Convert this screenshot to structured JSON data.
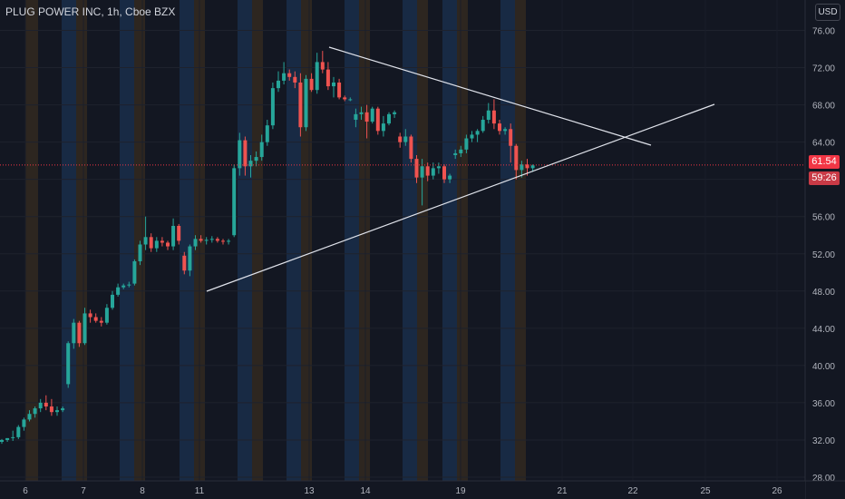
{
  "header": {
    "symbol_line": "PLUG POWER INC, 1h, Cboe BZX"
  },
  "scale_button": "USD",
  "price_tag": "61.54",
  "countdown_tag": "59:26",
  "colors": {
    "background": "#131722",
    "up": "#26a69a",
    "down": "#ef5350",
    "price_line": "#f23645",
    "session_blue": "#182a44",
    "session_orange": "#2d2620",
    "trendline": "#e0e3eb"
  },
  "chart_data": {
    "type": "candlestick",
    "title": "PLUG POWER INC, 1h, Cboe BZX",
    "ylim": [
      28,
      77
    ],
    "y_ticks": [
      "76.00",
      "72.00",
      "68.00",
      "64.00",
      "60.00",
      "56.00",
      "52.00",
      "48.00",
      "44.00",
      "40.00",
      "36.00",
      "32.00",
      "28.00"
    ],
    "x_ticks": [
      "6",
      "7",
      "8",
      "11",
      "13",
      "14",
      "19",
      "21",
      "22",
      "25",
      "26"
    ],
    "last_price": 61.54,
    "grid": true,
    "candles": [
      [
        31.8,
        32.1,
        31.6,
        32.0
      ],
      [
        32.0,
        32.2,
        31.8,
        32.2
      ],
      [
        32.2,
        33.0,
        31.9,
        32.3
      ],
      [
        32.3,
        33.6,
        32.1,
        33.4
      ],
      [
        33.4,
        34.4,
        33.0,
        34.2
      ],
      [
        34.2,
        35.2,
        34.0,
        34.8
      ],
      [
        34.8,
        35.6,
        34.4,
        35.4
      ],
      [
        35.4,
        36.4,
        35.0,
        36.0
      ],
      [
        36.0,
        36.8,
        35.2,
        35.6
      ],
      [
        35.6,
        36.4,
        34.6,
        35.0
      ],
      [
        35.0,
        35.6,
        34.6,
        35.2
      ],
      [
        35.2,
        35.6,
        35.0,
        35.4
      ],
      [
        38.0,
        42.6,
        37.6,
        42.4
      ],
      [
        42.4,
        45.0,
        41.8,
        44.6
      ],
      [
        44.6,
        44.8,
        42.0,
        42.4
      ],
      [
        42.4,
        46.2,
        42.2,
        45.6
      ],
      [
        45.6,
        46.0,
        44.6,
        45.2
      ],
      [
        45.2,
        45.6,
        44.6,
        44.8
      ],
      [
        44.8,
        45.2,
        44.2,
        44.6
      ],
      [
        44.6,
        46.6,
        44.4,
        46.2
      ],
      [
        46.2,
        48.0,
        46.0,
        47.6
      ],
      [
        47.6,
        48.8,
        47.4,
        48.4
      ],
      [
        48.4,
        48.8,
        48.2,
        48.6
      ],
      [
        48.6,
        49.0,
        48.4,
        48.7
      ],
      [
        48.8,
        51.4,
        48.6,
        51.2
      ],
      [
        51.2,
        53.4,
        50.8,
        53.0
      ],
      [
        53.0,
        56.0,
        52.4,
        53.8
      ],
      [
        53.8,
        54.2,
        52.2,
        52.6
      ],
      [
        52.6,
        53.8,
        52.2,
        53.4
      ],
      [
        53.4,
        53.8,
        52.8,
        53.2
      ],
      [
        53.2,
        53.4,
        52.4,
        52.8
      ],
      [
        52.8,
        55.8,
        52.4,
        55.0
      ],
      [
        55.0,
        55.2,
        53.0,
        53.4
      ],
      [
        51.8,
        52.2,
        49.8,
        50.2
      ],
      [
        50.2,
        53.0,
        49.6,
        52.8
      ],
      [
        52.8,
        54.0,
        52.4,
        53.6
      ],
      [
        53.6,
        54.0,
        53.2,
        53.4
      ],
      [
        53.4,
        53.8,
        53.0,
        53.5
      ],
      [
        53.5,
        53.9,
        53.2,
        53.6
      ],
      [
        53.6,
        53.8,
        53.2,
        53.4
      ],
      [
        53.4,
        53.6,
        53.0,
        53.3
      ],
      [
        53.3,
        53.6,
        53.0,
        53.4
      ],
      [
        54.0,
        61.6,
        53.8,
        61.2
      ],
      [
        61.2,
        65.0,
        60.4,
        64.2
      ],
      [
        64.2,
        64.6,
        60.4,
        61.4
      ],
      [
        61.4,
        62.6,
        60.2,
        62.0
      ],
      [
        62.0,
        63.0,
        61.4,
        62.4
      ],
      [
        62.4,
        64.8,
        62.0,
        64.0
      ],
      [
        64.0,
        66.4,
        63.6,
        65.8
      ],
      [
        65.8,
        70.4,
        65.4,
        69.8
      ],
      [
        69.8,
        71.6,
        69.4,
        70.6
      ],
      [
        70.6,
        72.6,
        70.2,
        71.4
      ],
      [
        71.4,
        71.8,
        70.6,
        71.0
      ],
      [
        71.0,
        71.6,
        69.8,
        70.4
      ],
      [
        70.4,
        71.4,
        64.6,
        65.6
      ],
      [
        65.6,
        71.2,
        65.2,
        70.8
      ],
      [
        70.8,
        71.4,
        69.4,
        69.6
      ],
      [
        69.6,
        73.6,
        69.2,
        72.6
      ],
      [
        72.6,
        73.8,
        71.4,
        71.8
      ],
      [
        71.8,
        72.6,
        69.6,
        70.0
      ],
      [
        70.0,
        71.0,
        68.8,
        70.4
      ],
      [
        70.4,
        70.8,
        68.6,
        68.8
      ],
      [
        68.8,
        69.0,
        68.4,
        68.6
      ],
      [
        68.6,
        68.8,
        68.4,
        68.6
      ],
      [
        66.4,
        67.6,
        65.6,
        67.0
      ],
      [
        67.0,
        67.8,
        66.4,
        67.2
      ],
      [
        67.2,
        68.0,
        64.4,
        66.2
      ],
      [
        66.2,
        67.8,
        66.0,
        67.6
      ],
      [
        67.6,
        67.8,
        64.8,
        65.2
      ],
      [
        65.2,
        66.8,
        64.6,
        66.0
      ],
      [
        66.0,
        67.2,
        65.8,
        67.0
      ],
      [
        67.0,
        67.4,
        66.6,
        67.2
      ],
      [
        64.6,
        65.0,
        63.4,
        64.0
      ],
      [
        64.0,
        65.4,
        63.6,
        64.6
      ],
      [
        64.6,
        64.8,
        61.8,
        62.2
      ],
      [
        62.2,
        62.6,
        59.6,
        60.2
      ],
      [
        60.2,
        62.2,
        57.2,
        61.4
      ],
      [
        61.4,
        61.8,
        59.8,
        60.4
      ],
      [
        60.4,
        61.8,
        60.0,
        61.2
      ],
      [
        61.2,
        61.8,
        60.6,
        61.4
      ],
      [
        61.4,
        61.6,
        59.6,
        60.0
      ],
      [
        60.0,
        60.6,
        59.6,
        60.4
      ],
      [
        62.6,
        63.2,
        62.2,
        62.8
      ],
      [
        62.8,
        63.6,
        62.4,
        63.2
      ],
      [
        63.2,
        64.8,
        62.8,
        64.4
      ],
      [
        64.4,
        65.2,
        64.0,
        64.8
      ],
      [
        64.8,
        65.4,
        64.0,
        65.2
      ],
      [
        65.2,
        66.8,
        65.0,
        66.4
      ],
      [
        66.4,
        68.2,
        66.0,
        67.4
      ],
      [
        67.4,
        68.6,
        65.4,
        66.0
      ],
      [
        66.0,
        66.4,
        64.8,
        65.2
      ],
      [
        65.2,
        65.6,
        64.8,
        65.4
      ],
      [
        65.4,
        66.0,
        61.8,
        63.6
      ],
      [
        63.6,
        63.8,
        60.0,
        61.0
      ],
      [
        61.0,
        62.0,
        60.2,
        61.6
      ],
      [
        61.6,
        62.2,
        60.4,
        61.2
      ],
      [
        61.2,
        61.6,
        60.8,
        61.5
      ]
    ],
    "trendlines": [
      {
        "from": [
          363,
          52
        ],
        "to": [
          718,
          160
        ]
      },
      {
        "from": [
          228,
          321
        ],
        "to": [
          788,
          115
        ]
      }
    ],
    "sessions": [
      {
        "x": 28,
        "w": 14,
        "kind": "orange"
      },
      {
        "x": 68,
        "w": 16,
        "kind": "blue"
      },
      {
        "x": 84,
        "w": 12,
        "kind": "orange"
      },
      {
        "x": 132,
        "w": 16,
        "kind": "blue"
      },
      {
        "x": 148,
        "w": 12,
        "kind": "orange"
      },
      {
        "x": 198,
        "w": 16,
        "kind": "blue"
      },
      {
        "x": 214,
        "w": 12,
        "kind": "orange"
      },
      {
        "x": 262,
        "w": 16,
        "kind": "blue"
      },
      {
        "x": 278,
        "w": 12,
        "kind": "orange"
      },
      {
        "x": 316,
        "w": 16,
        "kind": "blue"
      },
      {
        "x": 332,
        "w": 12,
        "kind": "orange"
      },
      {
        "x": 380,
        "w": 16,
        "kind": "blue"
      },
      {
        "x": 396,
        "w": 12,
        "kind": "orange"
      },
      {
        "x": 444,
        "w": 16,
        "kind": "blue"
      },
      {
        "x": 460,
        "w": 12,
        "kind": "orange"
      },
      {
        "x": 488,
        "w": 16,
        "kind": "blue"
      },
      {
        "x": 504,
        "w": 12,
        "kind": "orange"
      },
      {
        "x": 552,
        "w": 16,
        "kind": "blue"
      },
      {
        "x": 568,
        "w": 12,
        "kind": "orange"
      }
    ]
  }
}
